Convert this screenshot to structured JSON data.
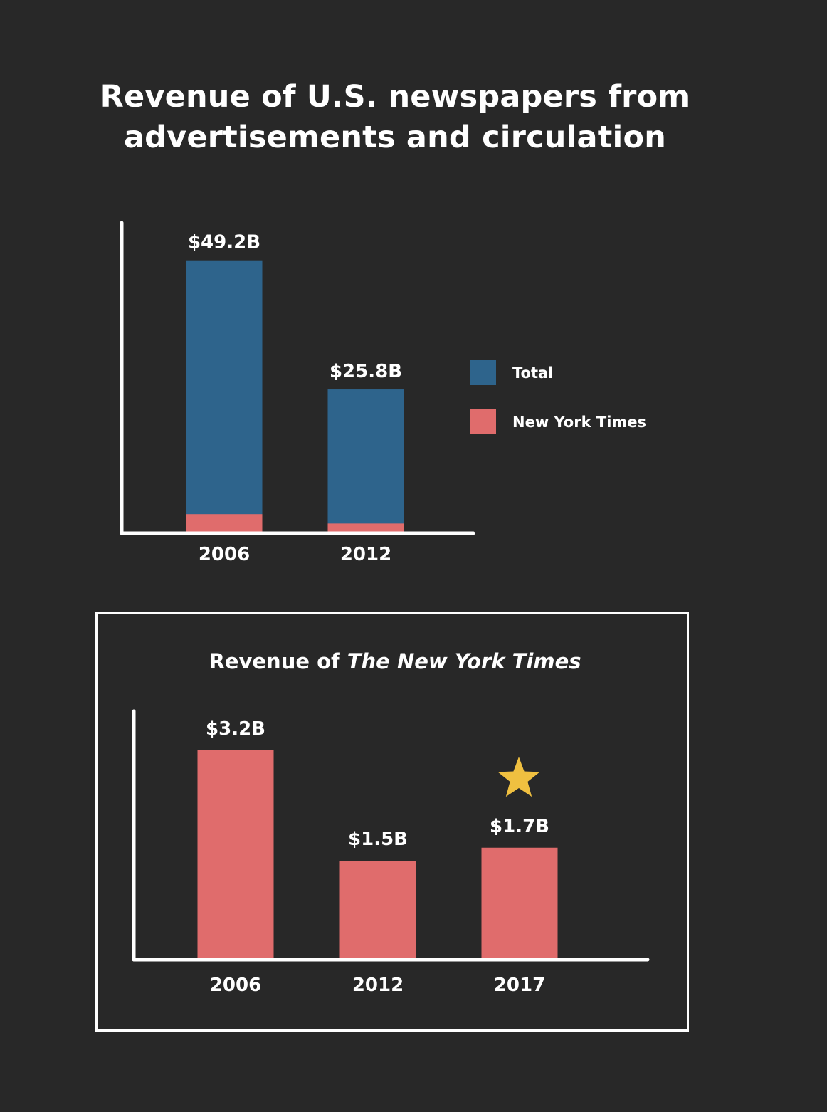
{
  "title": "Revenue of U.S. newspapers from advertisements and circulation",
  "colors": {
    "background": "#282828",
    "total": "#2e648c",
    "nyt": "#e06c6c",
    "star": "#f0c040",
    "axis": "#ffffff"
  },
  "chart_data": [
    {
      "type": "bar",
      "title": "Revenue of U.S. newspapers from advertisements and circulation",
      "categories": [
        "2006",
        "2012"
      ],
      "series": [
        {
          "name": "Total",
          "values": [
            49.2,
            25.8
          ],
          "labels": [
            "$49.2B",
            "$25.8B"
          ],
          "color": "#2e648c"
        },
        {
          "name": "New York Times",
          "values": [
            3.2,
            1.5
          ],
          "color": "#e06c6c"
        }
      ],
      "overlay": true,
      "xlabel": "",
      "ylabel": "",
      "ylim": [
        0,
        56
      ],
      "grid": false,
      "legend": "right"
    },
    {
      "type": "bar",
      "title_parts": [
        "Revenue of ",
        "The New York Times"
      ],
      "categories": [
        "2006",
        "2012",
        "2017"
      ],
      "series": [
        {
          "values": [
            3.2,
            1.5,
            1.7
          ],
          "labels": [
            "$3.2B",
            "$1.5B",
            "$1.7B"
          ],
          "color": "#e06c6c"
        }
      ],
      "highlight": {
        "category": "2017",
        "marker": "star-icon"
      },
      "xlabel": "",
      "ylabel": "",
      "ylim": [
        0,
        3.8
      ],
      "grid": false
    }
  ]
}
